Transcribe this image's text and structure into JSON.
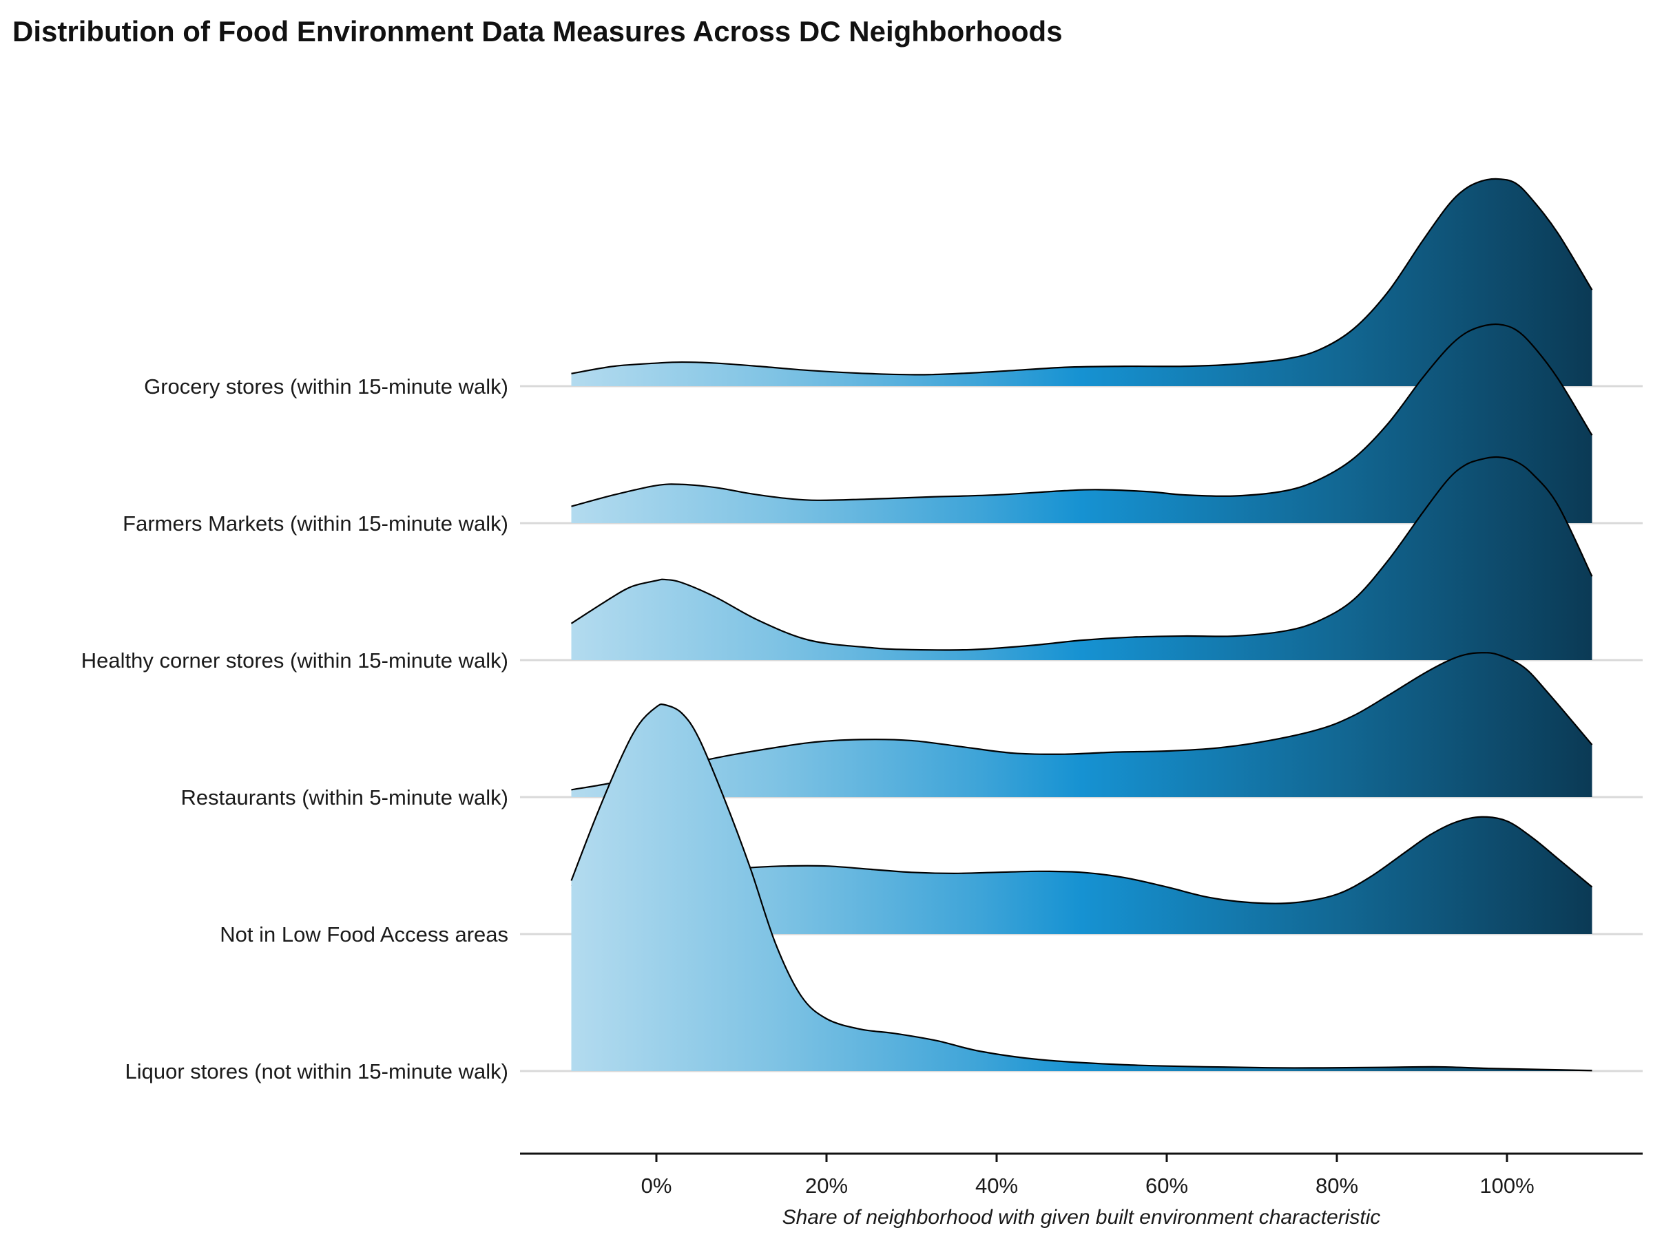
{
  "chart_data": {
    "type": "area",
    "subtype": "ridgeline-density",
    "title": "Distribution of Food Environment Data Measures Across DC Neighborhoods",
    "xlabel": "Share of neighborhood with given built environment characteristic",
    "ylabel": "",
    "x_ticks": [
      "0%",
      "20%",
      "40%",
      "60%",
      "80%",
      "100%"
    ],
    "x_tick_values": [
      0,
      20,
      40,
      60,
      80,
      100
    ],
    "xlim": [
      -16,
      116
    ],
    "x_density_range": [
      -10,
      110
    ],
    "grid": "horizontal baselines only",
    "gradient_colors": [
      "#b3dbef",
      "#7fc3e4",
      "#3ea4d8",
      "#1692d2",
      "#126894",
      "#0b3a55"
    ],
    "outline_color": "#000000",
    "series": [
      {
        "name": "Grocery stores (within 15-minute walk)",
        "x": [
          -10,
          -5,
          0,
          3,
          7,
          12,
          18,
          25,
          32,
          40,
          48,
          55,
          62,
          68,
          74,
          78,
          82,
          86,
          90,
          93,
          95,
          97,
          99,
          101,
          103,
          106,
          110
        ],
        "density": [
          0.12,
          0.19,
          0.22,
          0.23,
          0.22,
          0.19,
          0.15,
          0.12,
          0.11,
          0.14,
          0.18,
          0.19,
          0.19,
          0.21,
          0.26,
          0.35,
          0.55,
          0.9,
          1.38,
          1.72,
          1.88,
          1.96,
          1.98,
          1.94,
          1.78,
          1.46,
          0.92
        ]
      },
      {
        "name": "Farmers Markets (within 15-minute walk)",
        "x": [
          -10,
          -5,
          0,
          3,
          7,
          12,
          18,
          25,
          32,
          40,
          48,
          52,
          58,
          62,
          68,
          74,
          78,
          82,
          86,
          90,
          93,
          95,
          97,
          99,
          101,
          103,
          106,
          110
        ],
        "density": [
          0.16,
          0.27,
          0.36,
          0.37,
          0.34,
          0.27,
          0.22,
          0.23,
          0.25,
          0.27,
          0.31,
          0.32,
          0.3,
          0.27,
          0.26,
          0.31,
          0.42,
          0.62,
          0.95,
          1.38,
          1.67,
          1.81,
          1.88,
          1.9,
          1.85,
          1.7,
          1.38,
          0.84
        ]
      },
      {
        "name": "Healthy corner stores (within 15-minute walk)",
        "x": [
          -10,
          -6,
          -3,
          0,
          1,
          3,
          7,
          12,
          18,
          25,
          30,
          37,
          44,
          50,
          56,
          62,
          68,
          74,
          78,
          82,
          86,
          90,
          93,
          95,
          97,
          99,
          101,
          103,
          106,
          110
        ],
        "density": [
          0.35,
          0.56,
          0.7,
          0.76,
          0.77,
          0.74,
          0.6,
          0.38,
          0.19,
          0.12,
          0.1,
          0.1,
          0.14,
          0.19,
          0.22,
          0.23,
          0.23,
          0.28,
          0.38,
          0.58,
          0.95,
          1.4,
          1.72,
          1.86,
          1.92,
          1.94,
          1.9,
          1.78,
          1.48,
          0.8
        ]
      },
      {
        "name": "Restaurants (within 5-minute walk)",
        "x": [
          -10,
          -5,
          0,
          5,
          10,
          18,
          24,
          30,
          36,
          42,
          48,
          54,
          60,
          66,
          72,
          78,
          82,
          86,
          90,
          93,
          95,
          97,
          99,
          102,
          105,
          110
        ],
        "density": [
          0.07,
          0.14,
          0.24,
          0.34,
          0.42,
          0.52,
          0.55,
          0.54,
          0.48,
          0.42,
          0.41,
          0.43,
          0.44,
          0.47,
          0.54,
          0.65,
          0.78,
          0.97,
          1.17,
          1.3,
          1.36,
          1.38,
          1.36,
          1.24,
          0.98,
          0.5
        ]
      },
      {
        "name": "Not in Low Food Access areas",
        "x": [
          -10,
          -5,
          0,
          5,
          10,
          15,
          20,
          25,
          30,
          35,
          40,
          45,
          50,
          55,
          60,
          65,
          70,
          75,
          80,
          84,
          88,
          91,
          94,
          97,
          100,
          103,
          106,
          110
        ],
        "density": [
          0.46,
          0.52,
          0.56,
          0.6,
          0.63,
          0.65,
          0.65,
          0.62,
          0.59,
          0.58,
          0.59,
          0.6,
          0.59,
          0.54,
          0.45,
          0.35,
          0.3,
          0.3,
          0.38,
          0.55,
          0.78,
          0.95,
          1.07,
          1.12,
          1.08,
          0.92,
          0.72,
          0.45
        ]
      },
      {
        "name": "Liquor stores (not within 15-minute walk)",
        "x": [
          -10,
          -7,
          -4,
          -2,
          0,
          1,
          3,
          5,
          8,
          11,
          14,
          17,
          20,
          24,
          28,
          33,
          38,
          45,
          55,
          65,
          75,
          85,
          92,
          98,
          104,
          110
        ],
        "density": [
          1.82,
          2.45,
          3.02,
          3.32,
          3.48,
          3.5,
          3.42,
          3.18,
          2.6,
          1.95,
          1.22,
          0.72,
          0.5,
          0.4,
          0.36,
          0.29,
          0.19,
          0.11,
          0.06,
          0.04,
          0.03,
          0.035,
          0.04,
          0.025,
          0.015,
          0.005
        ]
      }
    ]
  }
}
